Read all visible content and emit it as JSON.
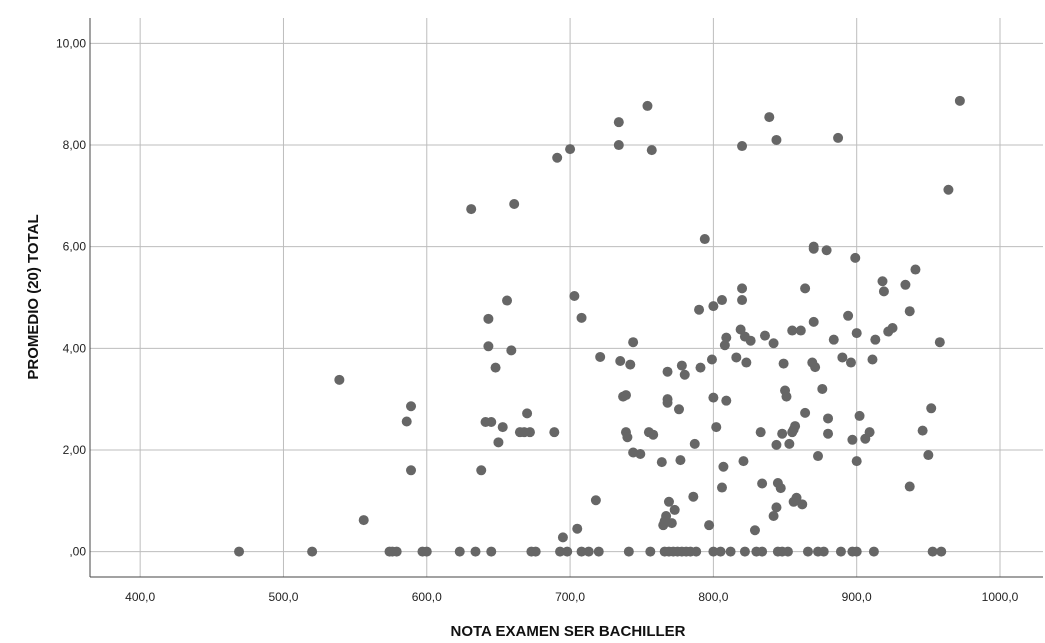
{
  "chart_data": {
    "type": "scatter",
    "title": "",
    "xlabel": "NOTA EXAMEN SER BACHILLER",
    "ylabel": "PROMEDIO (20) TOTAL",
    "xlim": [
      365,
      1030
    ],
    "ylim": [
      -0.5,
      10.5
    ],
    "x_ticks": [
      400,
      500,
      600,
      700,
      800,
      900,
      1000
    ],
    "x_tick_labels": [
      "400,0",
      "500,0",
      "600,0",
      "700,0",
      "800,0",
      "900,0",
      "1000,0"
    ],
    "y_ticks": [
      0,
      2,
      4,
      6,
      8,
      10
    ],
    "y_tick_labels": [
      ",00",
      "2,00",
      "4,00",
      "6,00",
      "8,00",
      "10,00"
    ],
    "grid": true,
    "legend": "none",
    "point_color": "#666666",
    "points": [
      [
        469,
        0
      ],
      [
        520,
        0
      ],
      [
        574,
        0
      ],
      [
        576,
        0
      ],
      [
        579,
        0
      ],
      [
        597,
        0
      ],
      [
        600,
        0
      ],
      [
        623,
        0
      ],
      [
        634,
        0
      ],
      [
        645,
        0
      ],
      [
        673,
        0
      ],
      [
        676,
        0
      ],
      [
        693,
        0
      ],
      [
        698,
        0
      ],
      [
        708,
        0
      ],
      [
        713,
        0
      ],
      [
        720,
        0
      ],
      [
        741,
        0
      ],
      [
        756,
        0
      ],
      [
        766,
        0
      ],
      [
        769,
        0
      ],
      [
        772,
        0
      ],
      [
        775,
        0
      ],
      [
        778,
        0
      ],
      [
        781,
        0
      ],
      [
        784,
        0
      ],
      [
        788,
        0
      ],
      [
        800,
        0
      ],
      [
        805,
        0
      ],
      [
        812,
        0
      ],
      [
        822,
        0
      ],
      [
        830,
        0
      ],
      [
        834,
        0
      ],
      [
        845,
        0
      ],
      [
        848,
        0
      ],
      [
        852,
        0
      ],
      [
        866,
        0
      ],
      [
        873,
        0
      ],
      [
        877,
        0
      ],
      [
        889,
        0
      ],
      [
        897,
        0
      ],
      [
        900,
        0
      ],
      [
        912,
        0
      ],
      [
        953,
        0
      ],
      [
        959,
        0
      ],
      [
        539,
        3.38
      ],
      [
        556,
        0.62
      ],
      [
        586,
        2.56
      ],
      [
        589,
        2.86
      ],
      [
        589,
        1.6
      ],
      [
        631,
        6.74
      ],
      [
        638,
        1.6
      ],
      [
        641,
        2.55
      ],
      [
        643,
        4.58
      ],
      [
        643,
        4.04
      ],
      [
        645,
        2.55
      ],
      [
        648,
        3.62
      ],
      [
        650,
        2.15
      ],
      [
        653,
        2.45
      ],
      [
        656,
        4.94
      ],
      [
        659,
        3.96
      ],
      [
        661,
        6.84
      ],
      [
        665,
        2.35
      ],
      [
        668,
        2.35
      ],
      [
        670,
        2.72
      ],
      [
        672,
        2.35
      ],
      [
        689,
        2.35
      ],
      [
        691,
        7.75
      ],
      [
        695,
        0.28
      ],
      [
        700,
        7.92
      ],
      [
        703,
        5.03
      ],
      [
        705,
        0.45
      ],
      [
        708,
        4.6
      ],
      [
        718,
        1.01
      ],
      [
        721,
        3.83
      ],
      [
        734,
        8.45
      ],
      [
        734,
        8.0
      ],
      [
        735,
        3.75
      ],
      [
        737,
        3.05
      ],
      [
        739,
        2.35
      ],
      [
        739,
        3.08
      ],
      [
        740,
        2.25
      ],
      [
        742,
        3.68
      ],
      [
        744,
        4.12
      ],
      [
        744,
        1.95
      ],
      [
        749,
        1.92
      ],
      [
        754,
        8.77
      ],
      [
        755,
        2.35
      ],
      [
        757,
        7.9
      ],
      [
        758,
        2.3
      ],
      [
        764,
        1.76
      ],
      [
        765,
        0.52
      ],
      [
        766,
        0.6
      ],
      [
        767,
        0.7
      ],
      [
        768,
        3.0
      ],
      [
        768,
        2.93
      ],
      [
        768,
        3.54
      ],
      [
        769,
        0.98
      ],
      [
        771,
        0.56
      ],
      [
        773,
        0.82
      ],
      [
        776,
        2.8
      ],
      [
        777,
        1.8
      ],
      [
        778,
        3.66
      ],
      [
        780,
        3.48
      ],
      [
        786,
        1.08
      ],
      [
        787,
        2.12
      ],
      [
        790,
        4.76
      ],
      [
        791,
        3.62
      ],
      [
        794,
        6.15
      ],
      [
        797,
        0.52
      ],
      [
        799,
        3.78
      ],
      [
        800,
        4.83
      ],
      [
        800,
        3.03
      ],
      [
        802,
        2.45
      ],
      [
        806,
        4.95
      ],
      [
        806,
        1.26
      ],
      [
        807,
        1.67
      ],
      [
        808,
        4.06
      ],
      [
        809,
        4.21
      ],
      [
        809,
        2.97
      ],
      [
        816,
        3.82
      ],
      [
        819,
        4.37
      ],
      [
        820,
        5.18
      ],
      [
        820,
        7.98
      ],
      [
        820,
        4.95
      ],
      [
        821,
        1.78
      ],
      [
        822,
        4.23
      ],
      [
        823,
        3.72
      ],
      [
        826,
        4.15
      ],
      [
        829,
        0.42
      ],
      [
        833,
        2.35
      ],
      [
        834,
        1.34
      ],
      [
        836,
        4.25
      ],
      [
        839,
        8.55
      ],
      [
        842,
        4.1
      ],
      [
        842,
        0.7
      ],
      [
        844,
        8.1
      ],
      [
        844,
        2.1
      ],
      [
        844,
        0.87
      ],
      [
        845,
        1.35
      ],
      [
        847,
        1.25
      ],
      [
        848,
        2.32
      ],
      [
        849,
        3.7
      ],
      [
        850,
        3.17
      ],
      [
        851,
        3.05
      ],
      [
        853,
        2.12
      ],
      [
        855,
        2.35
      ],
      [
        855,
        4.35
      ],
      [
        856,
        0.98
      ],
      [
        856,
        2.4
      ],
      [
        857,
        2.47
      ],
      [
        858,
        1.06
      ],
      [
        861,
        4.35
      ],
      [
        862,
        0.93
      ],
      [
        864,
        2.73
      ],
      [
        864,
        5.18
      ],
      [
        869,
        3.72
      ],
      [
        870,
        6.0
      ],
      [
        870,
        5.96
      ],
      [
        870,
        4.52
      ],
      [
        871,
        3.63
      ],
      [
        873,
        1.88
      ],
      [
        876,
        3.2
      ],
      [
        879,
        5.93
      ],
      [
        880,
        2.62
      ],
      [
        880,
        2.32
      ],
      [
        884,
        4.17
      ],
      [
        887,
        8.14
      ],
      [
        890,
        3.82
      ],
      [
        894,
        4.64
      ],
      [
        896,
        3.72
      ],
      [
        897,
        2.2
      ],
      [
        899,
        5.78
      ],
      [
        900,
        4.3
      ],
      [
        900,
        1.78
      ],
      [
        902,
        2.67
      ],
      [
        906,
        2.22
      ],
      [
        909,
        2.35
      ],
      [
        911,
        3.78
      ],
      [
        913,
        4.17
      ],
      [
        918,
        5.32
      ],
      [
        919,
        5.12
      ],
      [
        922,
        4.33
      ],
      [
        925,
        4.4
      ],
      [
        934,
        5.25
      ],
      [
        937,
        1.28
      ],
      [
        937,
        4.73
      ],
      [
        941,
        5.55
      ],
      [
        946,
        2.38
      ],
      [
        950,
        1.9
      ],
      [
        952,
        2.82
      ],
      [
        958,
        4.12
      ],
      [
        964,
        7.12
      ],
      [
        972,
        8.87
      ]
    ]
  }
}
